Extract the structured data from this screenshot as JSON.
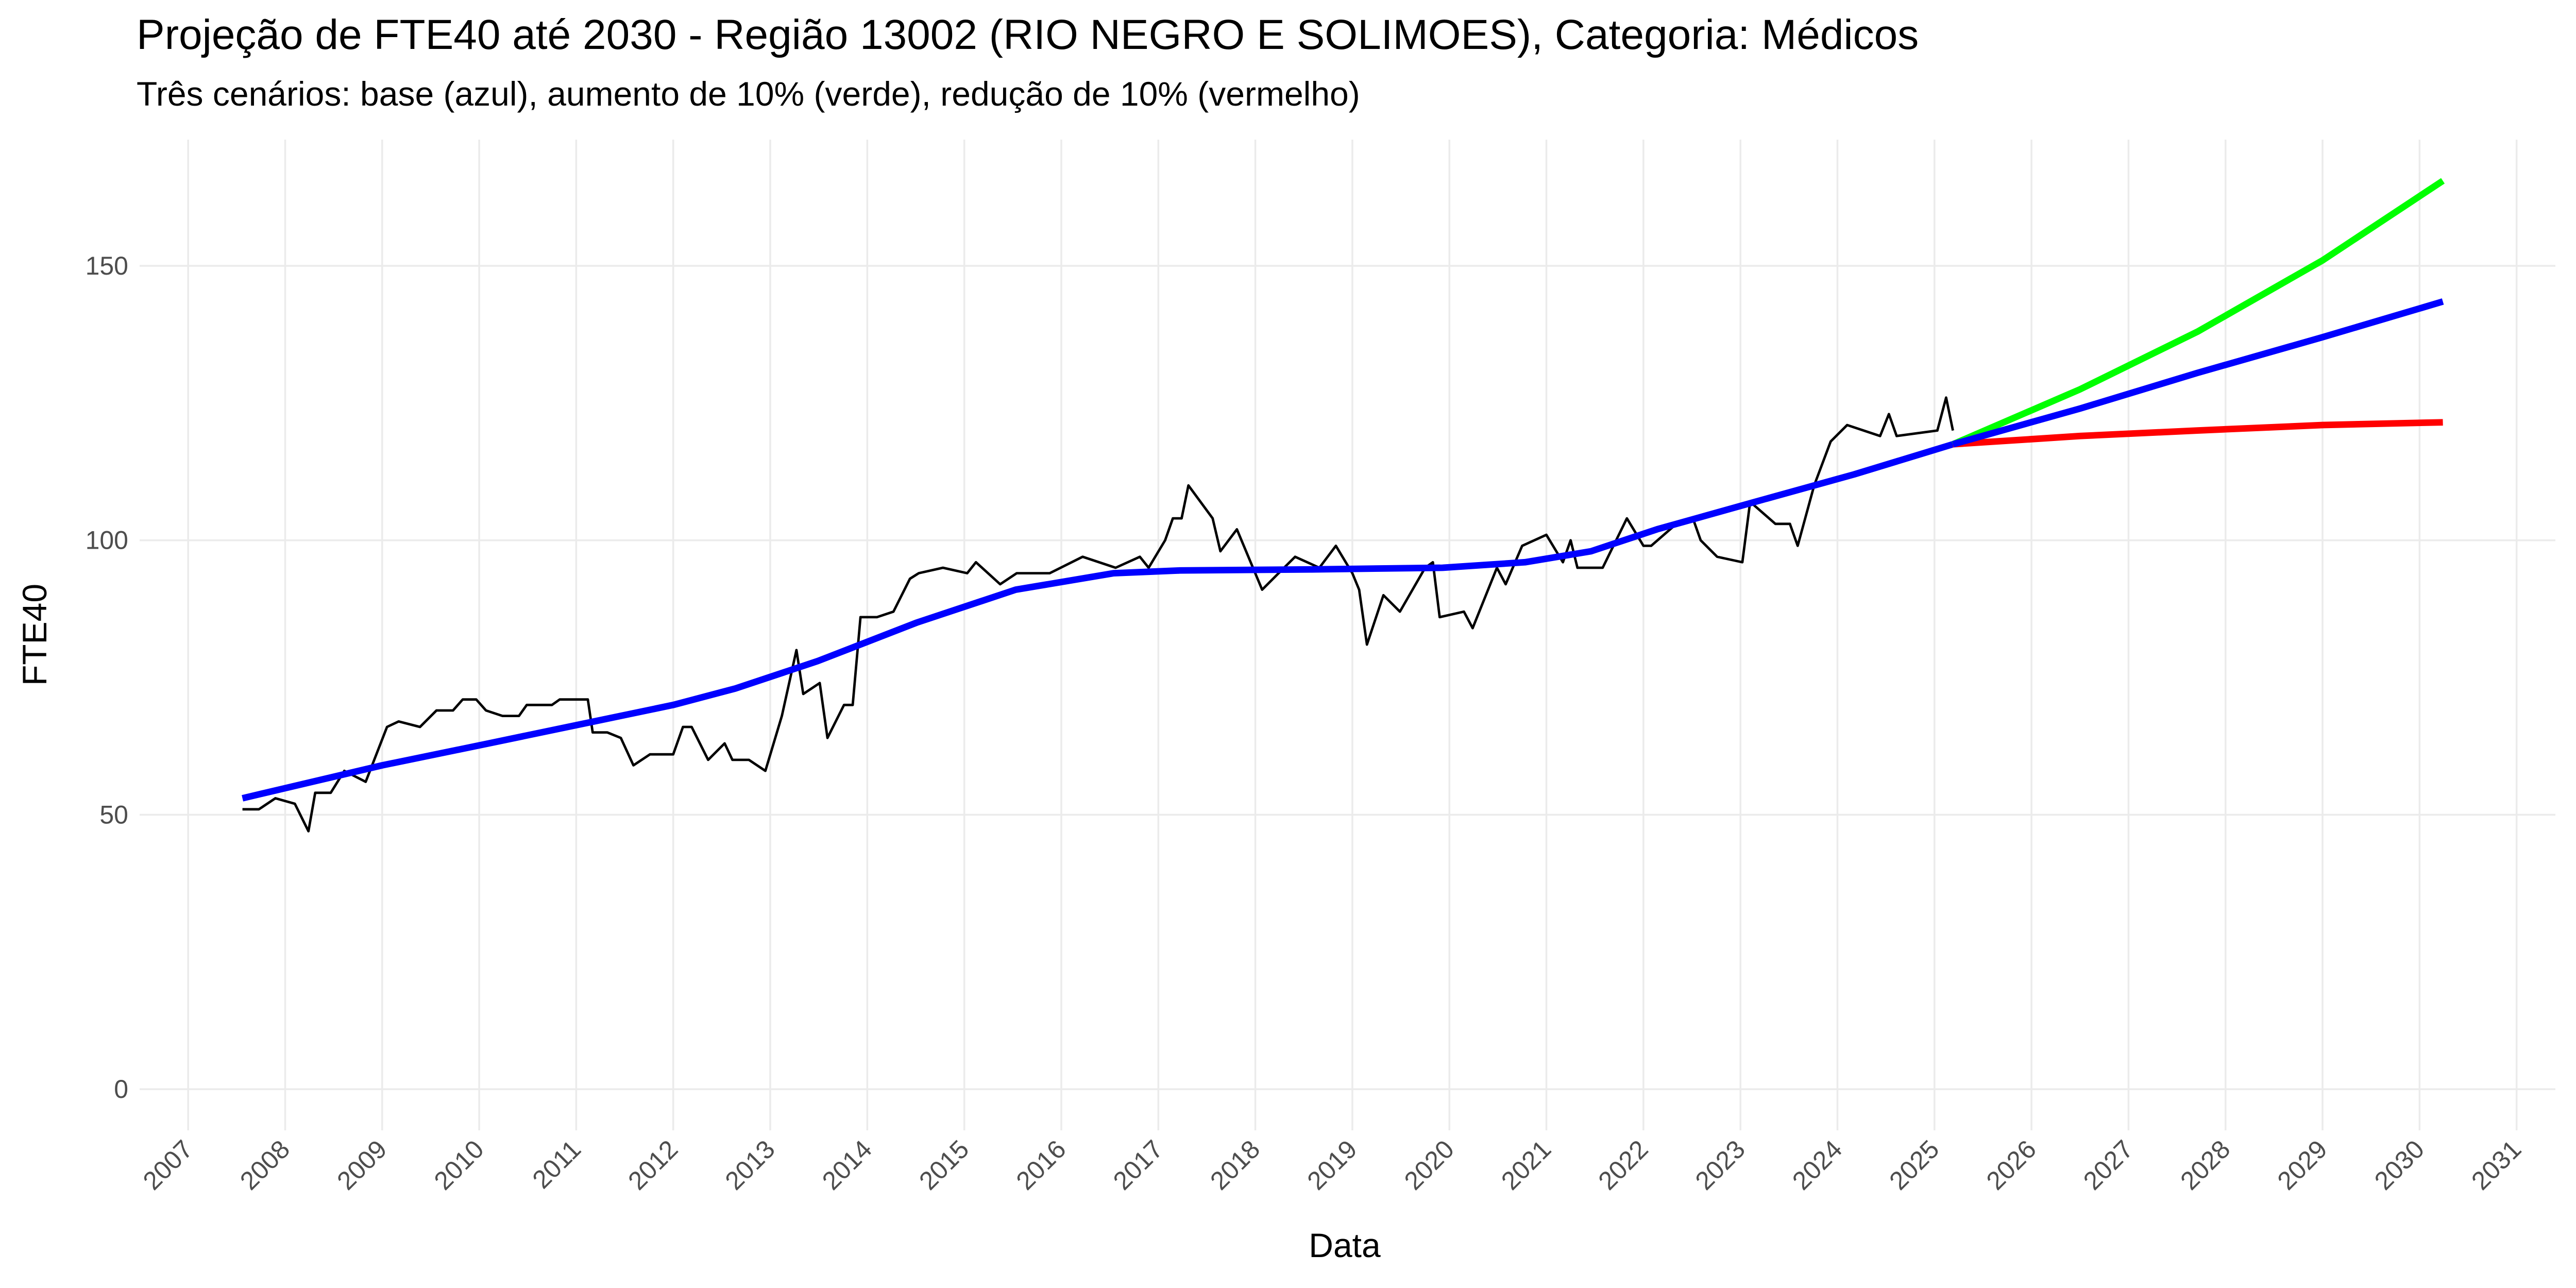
{
  "chart_data": {
    "type": "line",
    "title": "Projeção de FTE40 até 2030 - Região 13002 (RIO NEGRO E SOLIMOES), Categoria: Médicos",
    "subtitle": "Três cenários: base (azul), aumento de 10% (verde), redução de 10% (vermelho)",
    "x_label": "Data",
    "y_label": "FTE40",
    "xlim": [
      2006.5,
      2031.4
    ],
    "ylim": [
      -7.5,
      173
    ],
    "xticks": [
      2007,
      2008,
      2009,
      2010,
      2011,
      2012,
      2013,
      2014,
      2015,
      2016,
      2017,
      2018,
      2019,
      2020,
      2021,
      2022,
      2023,
      2024,
      2025,
      2026,
      2027,
      2028,
      2029,
      2030,
      2031
    ],
    "yticks": [
      0,
      50,
      100,
      150
    ],
    "grid": true,
    "series": [
      {
        "color": "#000000",
        "width": 1.5,
        "x": [
          2007.56,
          2007.73,
          2007.9,
          2008.1,
          2008.24,
          2008.31,
          2008.47,
          2008.61,
          2008.83,
          2009.05,
          2009.17,
          2009.39,
          2009.56,
          2009.73,
          2009.83,
          2009.97,
          2010.07,
          2010.24,
          2010.41,
          2010.49,
          2010.75,
          2010.83,
          2011.03,
          2011.12,
          2011.17,
          2011.32,
          2011.46,
          2011.59,
          2011.76,
          2012.0,
          2012.1,
          2012.19,
          2012.36,
          2012.53,
          2012.61,
          2012.78,
          2012.95,
          2013.12,
          2013.27,
          2013.34,
          2013.51,
          2013.59,
          2013.76,
          2013.85,
          2013.93,
          2014.1,
          2014.27,
          2014.44,
          2014.53,
          2014.78,
          2015.03,
          2015.12,
          2015.37,
          2015.54,
          2015.88,
          2016.22,
          2016.56,
          2016.81,
          2016.9,
          2017.07,
          2017.15,
          2017.24,
          2017.31,
          2017.56,
          2017.64,
          2017.81,
          2018.07,
          2018.24,
          2018.41,
          2018.66,
          2018.83,
          2019.0,
          2019.07,
          2019.15,
          2019.32,
          2019.49,
          2019.75,
          2019.83,
          2019.9,
          2020.15,
          2020.24,
          2020.49,
          2020.58,
          2020.75,
          2021.0,
          2021.17,
          2021.25,
          2021.32,
          2021.58,
          2021.83,
          2022.0,
          2022.08,
          2022.34,
          2022.51,
          2022.59,
          2022.76,
          2023.02,
          2023.1,
          2023.36,
          2023.51,
          2023.59,
          2023.76,
          2023.93,
          2024.1,
          2024.44,
          2024.53,
          2024.61,
          2025.03,
          2025.12,
          2025.19
        ],
        "values": [
          51,
          51,
          53,
          52,
          47,
          54,
          54,
          58,
          56,
          66,
          67,
          66,
          69,
          69,
          71,
          71,
          69,
          68,
          68,
          70,
          70,
          71,
          71,
          71,
          65,
          65,
          64,
          59,
          61,
          61,
          66,
          66,
          60,
          63,
          60,
          60,
          58,
          68,
          80,
          72,
          74,
          64,
          70,
          70,
          86,
          86,
          87,
          93,
          94,
          95,
          94,
          96,
          92,
          94,
          94,
          97,
          95,
          97,
          95,
          100,
          104,
          104,
          110,
          104,
          98,
          102,
          91,
          94,
          97,
          95,
          99,
          94,
          91,
          81,
          90,
          87,
          95,
          96,
          86,
          87,
          84,
          95,
          92,
          99,
          101,
          96,
          100,
          95,
          95,
          104,
          99,
          99,
          103,
          104,
          100,
          97,
          96,
          107,
          103,
          103,
          99,
          110,
          118,
          121,
          119,
          123,
          119,
          120,
          126,
          120
        ]
      },
      {
        "color": "#0000ff",
        "width": 4,
        "x": [
          2007.56,
          2009.0,
          2010.1,
          2012.0,
          2012.64,
          2013.49,
          2014.51,
          2015.53,
          2016.54,
          2017.22,
          2018.58,
          2019.93,
          2020.78,
          2021.46,
          2022.14,
          2023.15,
          2024.17,
          2025.19
        ],
        "values": [
          53,
          59,
          63,
          70,
          73,
          78,
          85,
          91,
          94,
          94.5,
          94.7,
          95,
          96,
          98,
          102,
          107,
          112,
          117.5
        ]
      },
      {
        "color": "#00ff00",
        "width": 4,
        "x": [
          2025.19,
          2026.5,
          2027.71,
          2029.0,
          2030.24
        ],
        "values": [
          117.5,
          127.5,
          138,
          151,
          165.5
        ]
      },
      {
        "color": "#ff0000",
        "width": 4,
        "x": [
          2025.19,
          2026.5,
          2027.71,
          2029.0,
          2030.24
        ],
        "values": [
          117.5,
          119,
          120,
          121,
          121.5
        ]
      },
      {
        "color": "#0000ff",
        "width": 4,
        "x": [
          2025.19,
          2026.5,
          2027.71,
          2029.0,
          2030.24
        ],
        "values": [
          117.5,
          124,
          130.5,
          137,
          143.5
        ]
      }
    ]
  }
}
